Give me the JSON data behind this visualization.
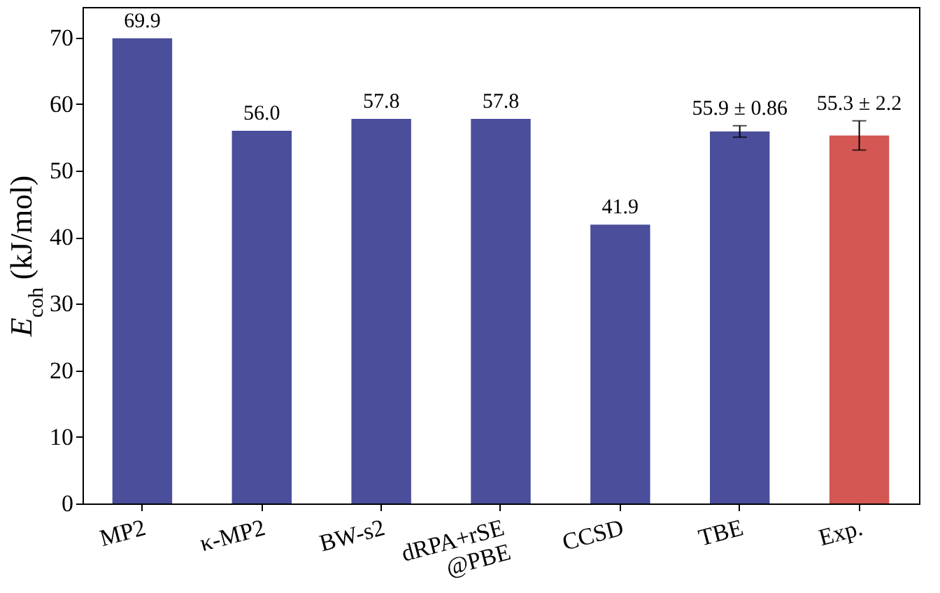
{
  "chart_data": {
    "type": "bar",
    "ylabel": "E$_{coh}$ (kJ/mol)",
    "categories": [
      "MP2",
      "κ-MP2",
      "BW-s2",
      "dRPA+rSE\n@PBE",
      "CCSD",
      "TBE",
      "Exp."
    ],
    "values": [
      69.9,
      56.0,
      57.8,
      57.8,
      41.9,
      55.9,
      55.3
    ],
    "colors": [
      "#4a4e9b",
      "#4a4e9b",
      "#4a4e9b",
      "#4a4e9b",
      "#4a4e9b",
      "#4a4e9b",
      "#d45753"
    ],
    "errors": [
      null,
      null,
      null,
      null,
      null,
      0.86,
      2.2
    ],
    "value_labels": [
      "69.9",
      "56.0",
      "57.8",
      "57.8",
      "41.9",
      "55.9 ± 0.86",
      "55.3 ± 2.2"
    ],
    "ylim": [
      0,
      74.6
    ],
    "yticks": [
      0,
      10,
      20,
      30,
      40,
      50,
      60,
      70
    ],
    "grid": false
  }
}
